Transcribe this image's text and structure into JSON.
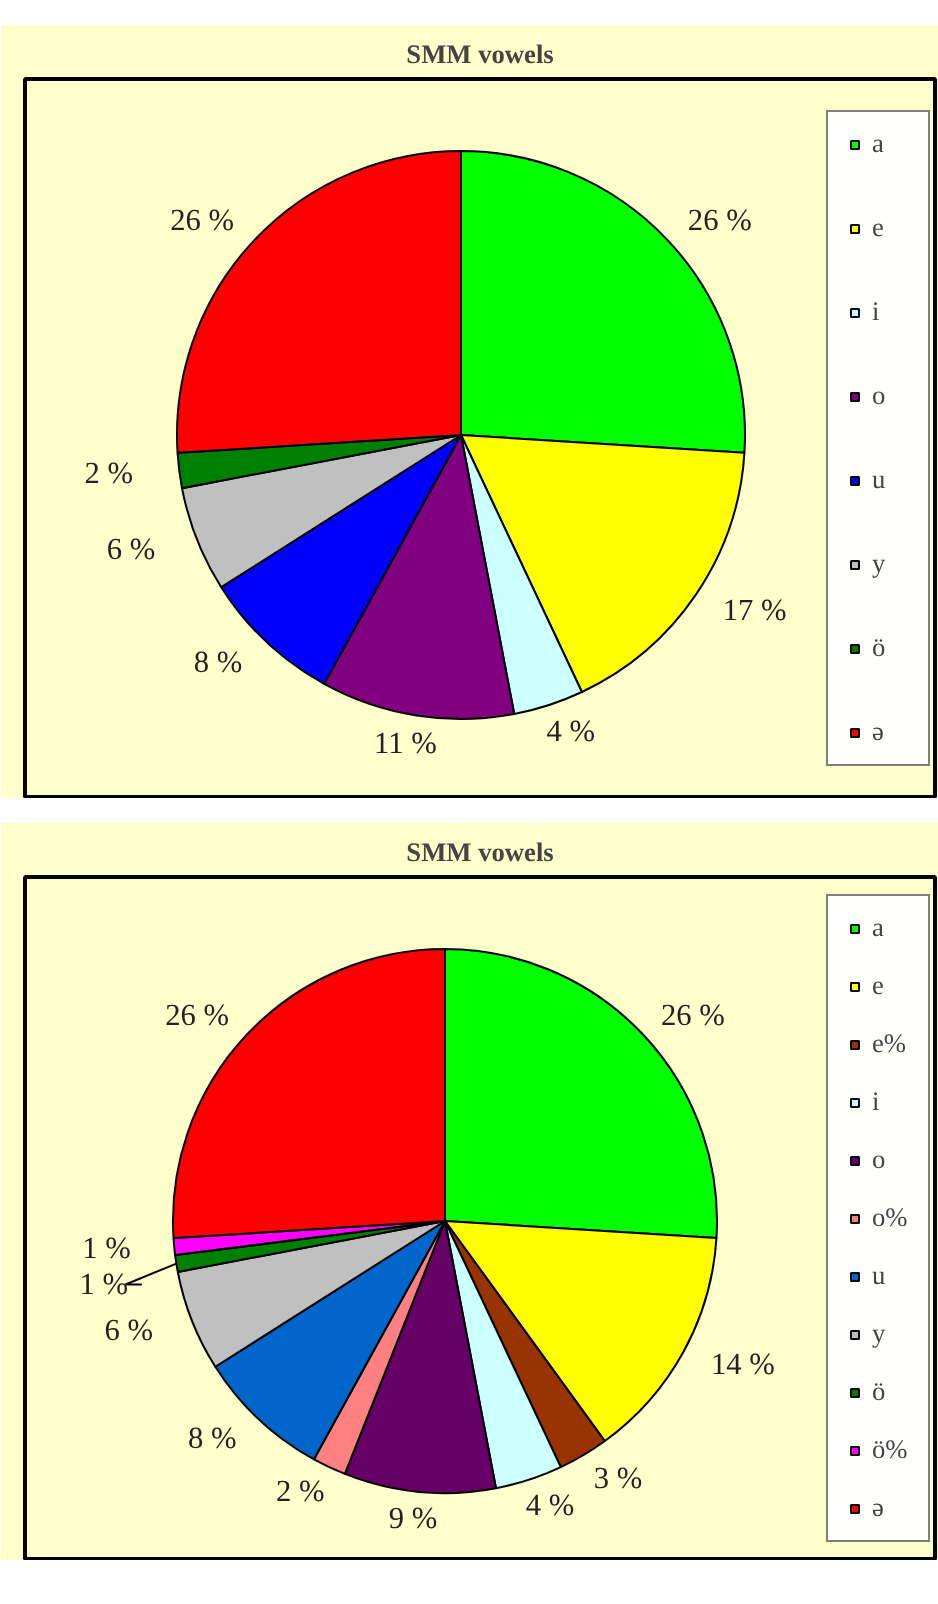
{
  "chart_data": [
    {
      "type": "pie",
      "title": "SMM vowels",
      "legend": "right",
      "categories": [
        "a",
        "e",
        "i",
        "o",
        "u",
        "y",
        "ö",
        "ə"
      ],
      "values": [
        26,
        17,
        4,
        11,
        8,
        6,
        2,
        26
      ],
      "colors": [
        "#00ff00",
        "#ffff00",
        "#ccffff",
        "#800080",
        "#0000ff",
        "#c0c0c0",
        "#008000",
        "#ff0000"
      ],
      "value_labels": [
        "26 %",
        "17 %",
        "4 %",
        "11 %",
        "8 %",
        "6 %",
        "2 %",
        "26 %"
      ]
    },
    {
      "type": "pie",
      "title": "SMM vowels",
      "legend": "right",
      "categories": [
        "a",
        "e",
        "e%",
        "i",
        "o",
        "o%",
        "u",
        "y",
        "ö",
        "ö%",
        "ə"
      ],
      "values": [
        26,
        14,
        3,
        4,
        9,
        2,
        8,
        6,
        1,
        1,
        26
      ],
      "colors": [
        "#00ff00",
        "#ffff00",
        "#993300",
        "#ccffff",
        "#660066",
        "#ff8080",
        "#0066cc",
        "#c0c0c0",
        "#008000",
        "#ff00ff",
        "#ff0000"
      ],
      "value_labels": [
        "26 %",
        "14 %",
        "3 %",
        "4 %",
        "9 %",
        "2 %",
        "8 %",
        "6 %",
        "1 %",
        "1 %",
        "26 %"
      ]
    }
  ]
}
